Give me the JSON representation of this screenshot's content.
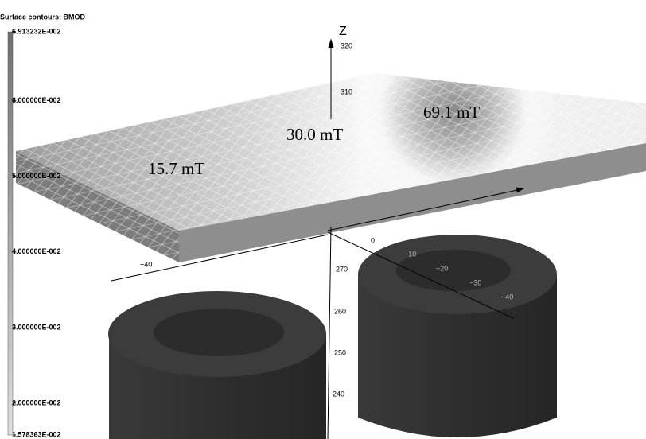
{
  "legend": {
    "title": "Surface contours: BMOD",
    "ticks": [
      {
        "value": 0.06913232,
        "label": "6.913232E-002"
      },
      {
        "value": 0.06,
        "label": "6.000000E-002"
      },
      {
        "value": 0.05,
        "label": "5.000000E-002"
      },
      {
        "value": 0.04,
        "label": "4.000000E-002"
      },
      {
        "value": 0.03,
        "label": "3.000000E-002"
      },
      {
        "value": 0.02,
        "label": "2.000000E-002"
      },
      {
        "value": 0.01578363,
        "label": "1.578363E-002"
      }
    ]
  },
  "annotations": [
    "15.7 mT",
    "30.0 mT",
    "69.1 mT"
  ],
  "axes": {
    "z_label": "Z",
    "z_ticks": [
      "320",
      "310",
      "270",
      "260",
      "250",
      "240"
    ],
    "x_ticks": [
      "−40"
    ],
    "y_ticks": [
      "0",
      "−10",
      "−20",
      "−30",
      "−40"
    ]
  }
}
